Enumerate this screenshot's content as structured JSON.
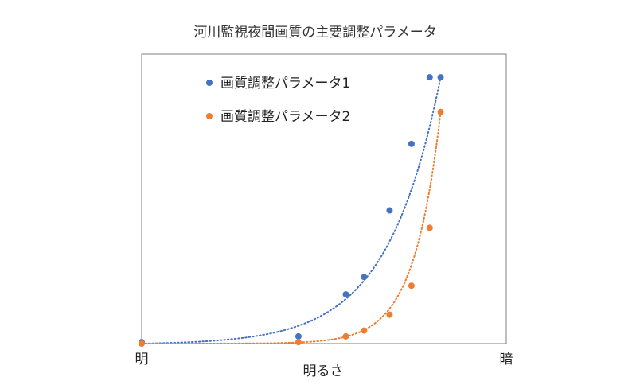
{
  "chart_data": {
    "type": "scatter",
    "title": "河川監視夜間画質の主要調整パラメータ",
    "xlabel": "明るさ",
    "ylabel": "",
    "x_tick_labels": {
      "left": "明",
      "right": "暗"
    },
    "xlim": [
      0,
      100
    ],
    "ylim": [
      0,
      100
    ],
    "grid": false,
    "legend_position": "top-left",
    "trendline": "exponential, dotted",
    "series": [
      {
        "name": "画質調整パラメータ1",
        "color": "#4472C4",
        "points": [
          {
            "x": 0,
            "y": 0.5
          },
          {
            "x": 43,
            "y": 2.5
          },
          {
            "x": 56,
            "y": 17
          },
          {
            "x": 61,
            "y": 23
          },
          {
            "x": 68,
            "y": 46
          },
          {
            "x": 74,
            "y": 69
          },
          {
            "x": 79,
            "y": 92
          },
          {
            "x": 82,
            "y": 92
          }
        ]
      },
      {
        "name": "画質調整パラメータ2",
        "color": "#ED7D31",
        "points": [
          {
            "x": 0,
            "y": 0
          },
          {
            "x": 43,
            "y": 0.5
          },
          {
            "x": 56,
            "y": 2.5
          },
          {
            "x": 61,
            "y": 4.5
          },
          {
            "x": 68,
            "y": 10
          },
          {
            "x": 74,
            "y": 20
          },
          {
            "x": 79,
            "y": 40
          },
          {
            "x": 82,
            "y": 80
          }
        ]
      }
    ]
  }
}
